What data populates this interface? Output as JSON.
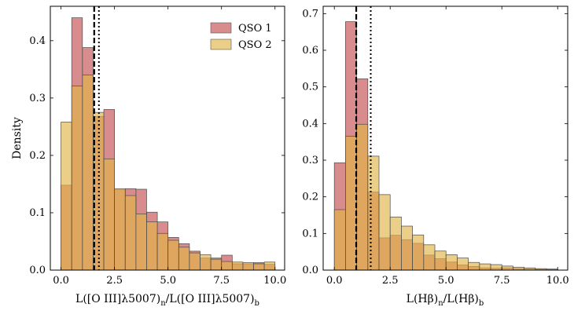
{
  "chart_data": [
    {
      "type": "bar",
      "subtype": "overlaid-histogram",
      "title": "",
      "xlabel": "L([O III]λ5007)ₙ/L([O III]λ5007)ᵦ",
      "xlabel_main": "L([O III]λ5007)",
      "xlabel_sub1": "n",
      "xlabel_mid": "/L([O III]λ5007)",
      "xlabel_sub2": "b",
      "ylabel": "Density",
      "xlim": [
        -0.5,
        10.45
      ],
      "ylim": [
        0,
        0.46
      ],
      "xticks": [
        0.0,
        2.5,
        5.0,
        7.5,
        10.0
      ],
      "xtick_labels": [
        "0.0",
        "2.5",
        "5.0",
        "7.5",
        "10.0"
      ],
      "yticks": [
        0.0,
        0.1,
        0.2,
        0.3,
        0.4
      ],
      "ytick_labels": [
        "0.0",
        "0.1",
        "0.2",
        "0.3",
        "0.4"
      ],
      "bin_edges": [
        0.0,
        0.5,
        1.0,
        1.5,
        2.0,
        2.5,
        3.0,
        3.5,
        4.0,
        4.5,
        5.0,
        5.5,
        6.0,
        6.5,
        7.0,
        7.5,
        8.0,
        8.5,
        9.0,
        9.5,
        10.0
      ],
      "series": [
        {
          "name": "QSO 1",
          "color": "#C44E52",
          "values": [
            0.148,
            0.44,
            0.388,
            0.268,
            0.28,
            0.14,
            0.142,
            0.141,
            0.101,
            0.084,
            0.057,
            0.046,
            0.033,
            0.021,
            0.021,
            0.026,
            0.011,
            0.011,
            0.013,
            0.01
          ]
        },
        {
          "name": "QSO 2",
          "color": "#E1B446",
          "values": [
            0.258,
            0.321,
            0.34,
            0.275,
            0.194,
            0.142,
            0.13,
            0.098,
            0.084,
            0.064,
            0.052,
            0.04,
            0.03,
            0.027,
            0.019,
            0.015,
            0.014,
            0.013,
            0.011,
            0.014
          ]
        }
      ],
      "vlines": [
        {
          "x": 1.55,
          "style": "dashed"
        },
        {
          "x": 1.77,
          "style": "dotted"
        }
      ],
      "legend": "top-right"
    },
    {
      "type": "bar",
      "subtype": "overlaid-histogram",
      "title": "",
      "xlabel": "L(Hβ)ₙ/L(Hβ)ᵦ",
      "xlabel_main": "L(Hβ)",
      "xlabel_sub1": "n",
      "xlabel_mid": "/L(Hβ)",
      "xlabel_sub2": "b",
      "ylabel": "",
      "xlim": [
        -0.5,
        10.45
      ],
      "ylim": [
        0,
        0.72
      ],
      "xticks": [
        0.0,
        2.5,
        5.0,
        7.5,
        10.0
      ],
      "xtick_labels": [
        "0.0",
        "2.5",
        "5.0",
        "7.5",
        "10.0"
      ],
      "yticks": [
        0.0,
        0.1,
        0.2,
        0.3,
        0.4,
        0.5,
        0.6,
        0.7
      ],
      "ytick_labels": [
        "0.0",
        "0.1",
        "0.2",
        "0.3",
        "0.4",
        "0.5",
        "0.6",
        "0.7"
      ],
      "bin_edges": [
        0.0,
        0.5,
        1.0,
        1.5,
        2.0,
        2.5,
        3.0,
        3.5,
        4.0,
        4.5,
        5.0,
        5.5,
        6.0,
        6.5,
        7.0,
        7.5,
        8.0,
        8.5,
        9.0,
        9.5,
        10.0
      ],
      "series": [
        {
          "name": "QSO 1",
          "color": "#C44E52",
          "values": [
            0.293,
            0.678,
            0.522,
            0.213,
            0.088,
            0.095,
            0.083,
            0.073,
            0.041,
            0.031,
            0.022,
            0.014,
            0.01,
            0.006,
            0.005,
            0.006,
            0.004,
            0.003,
            0.002,
            0.002
          ]
        },
        {
          "name": "QSO 2",
          "color": "#E1B446",
          "values": [
            0.165,
            0.365,
            0.398,
            0.311,
            0.206,
            0.145,
            0.12,
            0.096,
            0.069,
            0.052,
            0.042,
            0.033,
            0.021,
            0.017,
            0.015,
            0.011,
            0.008,
            0.006,
            0.004,
            0.003
          ]
        }
      ],
      "vlines": [
        {
          "x": 0.98,
          "style": "dashed"
        },
        {
          "x": 1.63,
          "style": "dotted"
        }
      ],
      "legend": "none"
    }
  ]
}
